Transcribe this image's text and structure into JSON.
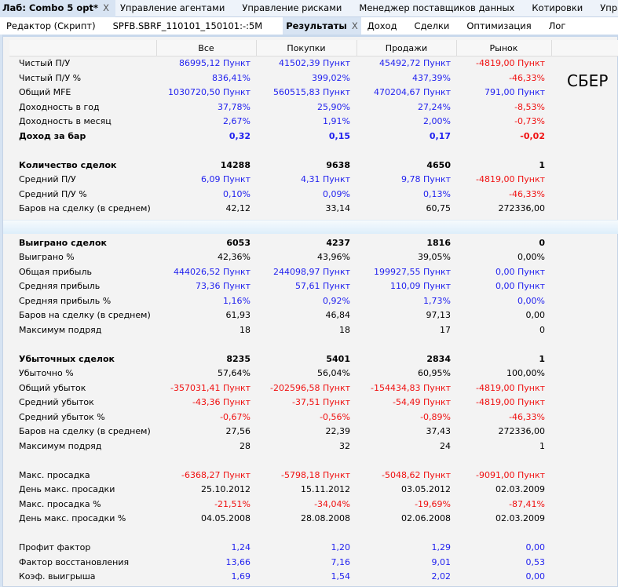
{
  "top_tabs": [
    {
      "label": "Лаб: Combo 5 opt*",
      "active": true
    },
    {
      "label": "Управление агентами"
    },
    {
      "label": "Управление рисками"
    },
    {
      "label": "Менеджер поставщиков данных"
    },
    {
      "label": "Котировки"
    },
    {
      "label": "Упра"
    }
  ],
  "sub_tabs": [
    {
      "label": "Редактор (Скрипт)"
    },
    {
      "label": "SPFB.SBRF_110101_150101:-:5M"
    },
    {
      "label": "Результаты",
      "active": true
    },
    {
      "label": "Доход"
    },
    {
      "label": "Сделки"
    },
    {
      "label": "Оптимизация"
    },
    {
      "label": "Лог"
    }
  ],
  "close_glyph": "X",
  "columns": [
    "Все",
    "Покупки",
    "Продажи",
    "Рынок"
  ],
  "overlay_label": "СБЕР",
  "colors": {
    "blue": "#1f1fef",
    "red": "#f01010",
    "black": "#000000"
  },
  "rows": [
    {
      "label": "Чистый П/У",
      "values": [
        "86995,12 Пункт",
        "41502,39 Пункт",
        "45492,72 Пункт",
        "-4819,00 Пункт"
      ],
      "colors": [
        "blue",
        "blue",
        "blue",
        "red"
      ]
    },
    {
      "label": "Чистый П/У %",
      "values": [
        "836,41%",
        "399,02%",
        "437,39%",
        "-46,33%"
      ],
      "colors": [
        "blue",
        "blue",
        "blue",
        "red"
      ]
    },
    {
      "label": "Общий MFE",
      "values": [
        "1030720,50 Пункт",
        "560515,83 Пункт",
        "470204,67 Пункт",
        "791,00 Пункт"
      ],
      "colors": [
        "blue",
        "blue",
        "blue",
        "blue"
      ]
    },
    {
      "label": "Доходность в год",
      "values": [
        "37,78%",
        "25,90%",
        "27,24%",
        "-8,53%"
      ],
      "colors": [
        "blue",
        "blue",
        "blue",
        "red"
      ]
    },
    {
      "label": "Доходность в месяц",
      "values": [
        "2,67%",
        "1,91%",
        "2,00%",
        "-0,73%"
      ],
      "colors": [
        "blue",
        "blue",
        "blue",
        "red"
      ]
    },
    {
      "label": "Доход за бар",
      "bold": true,
      "values": [
        "0,32",
        "0,15",
        "0,17",
        "-0,02"
      ],
      "colors": [
        "blue",
        "blue",
        "blue",
        "red"
      ]
    },
    {
      "blank": true
    },
    {
      "label": "Количество сделок",
      "bold": true,
      "values": [
        "14288",
        "9638",
        "4650",
        "1"
      ],
      "colors": [
        "black",
        "black",
        "black",
        "black"
      ]
    },
    {
      "label": "Средний П/У",
      "values": [
        "6,09 Пункт",
        "4,31 Пункт",
        "9,78 Пункт",
        "-4819,00 Пункт"
      ],
      "colors": [
        "blue",
        "blue",
        "blue",
        "red"
      ]
    },
    {
      "label": "Средний П/У %",
      "values": [
        "0,10%",
        "0,09%",
        "0,13%",
        "-46,33%"
      ],
      "colors": [
        "blue",
        "blue",
        "blue",
        "red"
      ]
    },
    {
      "label": "Баров на сделку (в среднем)",
      "values": [
        "42,12",
        "33,14",
        "60,75",
        "272336,00"
      ],
      "colors": [
        "black",
        "black",
        "black",
        "black"
      ]
    },
    {
      "sep": true
    },
    {
      "label": "Выиграно сделок",
      "bold": true,
      "values": [
        "6053",
        "4237",
        "1816",
        "0"
      ],
      "colors": [
        "black",
        "black",
        "black",
        "black"
      ]
    },
    {
      "label": "Выиграно %",
      "values": [
        "42,36%",
        "43,96%",
        "39,05%",
        "0,00%"
      ],
      "colors": [
        "black",
        "black",
        "black",
        "black"
      ]
    },
    {
      "label": "Общая прибыль",
      "values": [
        "444026,52 Пункт",
        "244098,97 Пункт",
        "199927,55 Пункт",
        "0,00 Пункт"
      ],
      "colors": [
        "blue",
        "blue",
        "blue",
        "blue"
      ]
    },
    {
      "label": "Средняя прибыль",
      "values": [
        "73,36 Пункт",
        "57,61 Пункт",
        "110,09 Пункт",
        "0,00 Пункт"
      ],
      "colors": [
        "blue",
        "blue",
        "blue",
        "blue"
      ]
    },
    {
      "label": "Средняя прибыль %",
      "values": [
        "1,16%",
        "0,92%",
        "1,73%",
        "0,00%"
      ],
      "colors": [
        "blue",
        "blue",
        "blue",
        "blue"
      ]
    },
    {
      "label": "Баров на сделку (в среднем)",
      "values": [
        "61,93",
        "46,84",
        "97,13",
        "0,00"
      ],
      "colors": [
        "black",
        "black",
        "black",
        "black"
      ]
    },
    {
      "label": "Максимум подряд",
      "values": [
        "18",
        "18",
        "17",
        "0"
      ],
      "colors": [
        "black",
        "black",
        "black",
        "black"
      ]
    },
    {
      "blank": true
    },
    {
      "label": "Убыточных сделок",
      "bold": true,
      "values": [
        "8235",
        "5401",
        "2834",
        "1"
      ],
      "colors": [
        "black",
        "black",
        "black",
        "black"
      ]
    },
    {
      "label": "Убыточно %",
      "values": [
        "57,64%",
        "56,04%",
        "60,95%",
        "100,00%"
      ],
      "colors": [
        "black",
        "black",
        "black",
        "black"
      ]
    },
    {
      "label": "Общий убыток",
      "values": [
        "-357031,41 Пункт",
        "-202596,58 Пункт",
        "-154434,83 Пункт",
        "-4819,00 Пункт"
      ],
      "colors": [
        "red",
        "red",
        "red",
        "red"
      ]
    },
    {
      "label": "Средний убыток",
      "values": [
        "-43,36 Пункт",
        "-37,51 Пункт",
        "-54,49 Пункт",
        "-4819,00 Пункт"
      ],
      "colors": [
        "red",
        "red",
        "red",
        "red"
      ]
    },
    {
      "label": "Средний убыток %",
      "values": [
        "-0,67%",
        "-0,56%",
        "-0,89%",
        "-46,33%"
      ],
      "colors": [
        "red",
        "red",
        "red",
        "red"
      ]
    },
    {
      "label": "Баров на сделку (в среднем)",
      "values": [
        "27,56",
        "22,39",
        "37,43",
        "272336,00"
      ],
      "colors": [
        "black",
        "black",
        "black",
        "black"
      ]
    },
    {
      "label": "Максимум подряд",
      "values": [
        "28",
        "32",
        "24",
        "1"
      ],
      "colors": [
        "black",
        "black",
        "black",
        "black"
      ]
    },
    {
      "blank": true
    },
    {
      "label": "Макс. просадка",
      "values": [
        "-6368,27 Пункт",
        "-5798,18 Пункт",
        "-5048,62 Пункт",
        "-9091,00 Пункт"
      ],
      "colors": [
        "red",
        "red",
        "red",
        "red"
      ]
    },
    {
      "label": "День макс. просадки",
      "values": [
        "25.10.2012",
        "15.11.2012",
        "03.05.2012",
        "02.03.2009"
      ],
      "colors": [
        "black",
        "black",
        "black",
        "black"
      ]
    },
    {
      "label": "Макс. просадка %",
      "values": [
        "-21,51%",
        "-34,04%",
        "-19,69%",
        "-87,41%"
      ],
      "colors": [
        "red",
        "red",
        "red",
        "red"
      ]
    },
    {
      "label": "День макс. просадки %",
      "values": [
        "04.05.2008",
        "28.08.2008",
        "02.06.2008",
        "02.03.2009"
      ],
      "colors": [
        "black",
        "black",
        "black",
        "black"
      ]
    },
    {
      "blank": true
    },
    {
      "label": "Профит фактор",
      "values": [
        "1,24",
        "1,20",
        "1,29",
        "0,00"
      ],
      "colors": [
        "blue",
        "blue",
        "blue",
        "blue"
      ]
    },
    {
      "label": "Фактор восстановления",
      "values": [
        "13,66",
        "7,16",
        "9,01",
        "0,53"
      ],
      "colors": [
        "blue",
        "blue",
        "blue",
        "blue"
      ]
    },
    {
      "label": "Коэф. выигрыша",
      "values": [
        "1,69",
        "1,54",
        "2,02",
        "0,00"
      ],
      "colors": [
        "blue",
        "blue",
        "blue",
        "blue"
      ]
    }
  ]
}
